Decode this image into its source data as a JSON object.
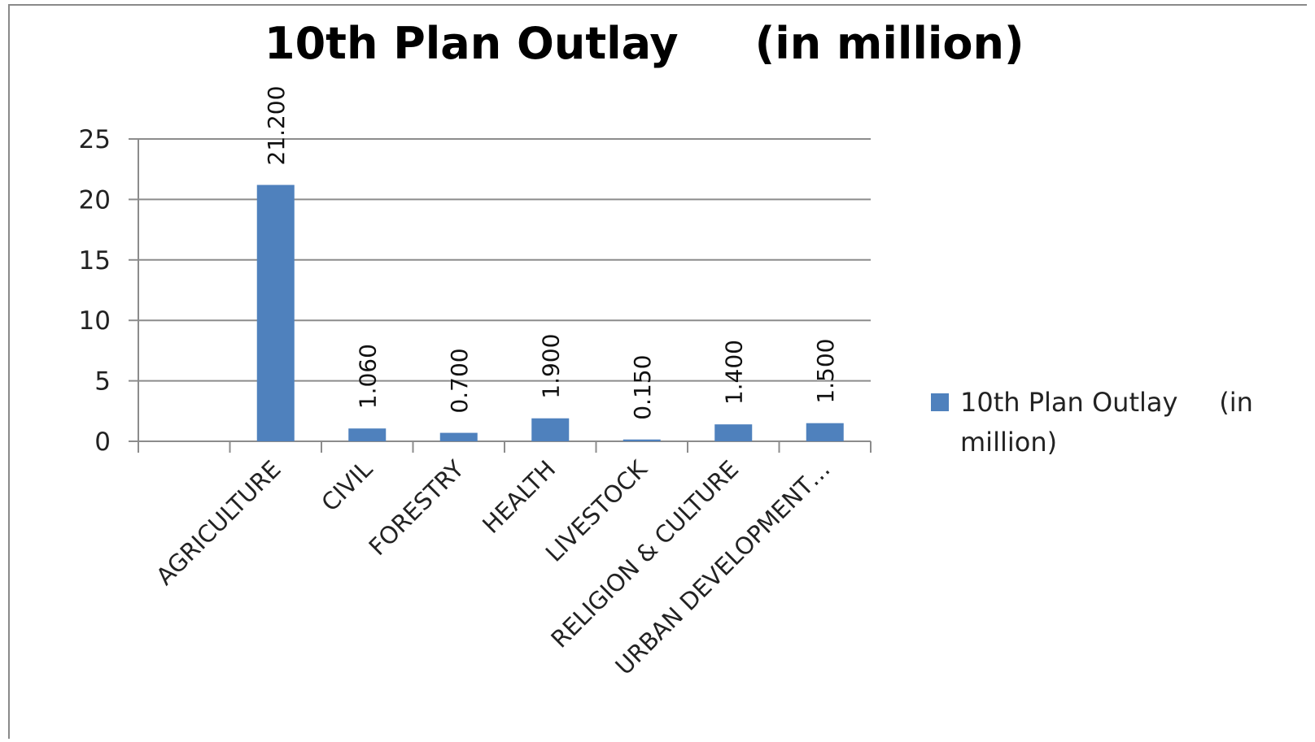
{
  "chart_data": {
    "type": "bar",
    "title": "10th Plan Outlay     (in million)",
    "xlabel": "",
    "ylabel": "",
    "categories": [
      "",
      "AGRICULTURE",
      "CIVIL",
      "FORESTRY",
      "HEALTH",
      "LIVESTOCK",
      "RELIGION & CULTURE",
      "URBAN DEVELOPMENT…"
    ],
    "series": [
      {
        "name": "10th Plan Outlay     (in million)",
        "values": [
          null,
          21.2,
          1.06,
          0.7,
          1.9,
          0.15,
          1.4,
          1.5
        ],
        "labels": [
          "",
          "21.200",
          "1.060",
          "0.700",
          "1.900",
          "0.150",
          "1.400",
          "1.500"
        ],
        "color": "#4f81bd"
      }
    ],
    "ylim": [
      0,
      25
    ],
    "yticks": [
      0,
      5,
      10,
      15,
      20,
      25
    ],
    "grid": true,
    "legend_position": "right",
    "legend_lines": [
      "10th Plan Outlay     (in",
      "million)"
    ]
  },
  "colors": {
    "bar": "#4f81bd",
    "grid": "#8c8c8c",
    "axis": "#8c8c8c",
    "frame": "#8a8a8a"
  }
}
